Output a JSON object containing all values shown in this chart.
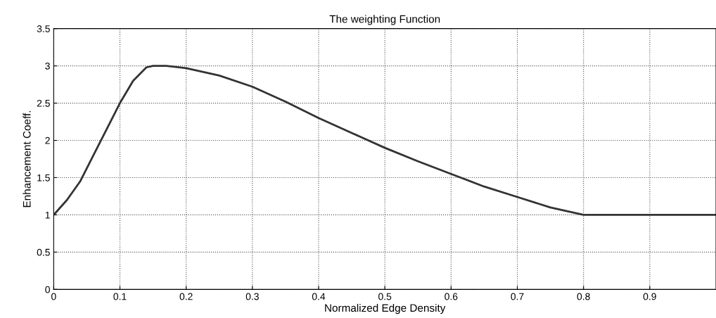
{
  "chart_data": {
    "type": "line",
    "title": "The weighting Function",
    "xlabel": "Normalized Edge Density",
    "ylabel": "Enhancement Coeff.",
    "x": [
      0,
      0.02,
      0.04,
      0.06,
      0.08,
      0.1,
      0.12,
      0.14,
      0.15,
      0.17,
      0.2,
      0.25,
      0.3,
      0.35,
      0.4,
      0.45,
      0.5,
      0.55,
      0.6,
      0.65,
      0.7,
      0.75,
      0.8,
      0.9,
      1.0
    ],
    "series": [
      {
        "color": "#333333",
        "values": [
          1,
          1.2,
          1.45,
          1.8,
          2.15,
          2.5,
          2.8,
          2.98,
          3.0,
          3.0,
          2.97,
          2.87,
          2.72,
          2.52,
          2.3,
          2.1,
          1.9,
          1.72,
          1.55,
          1.38,
          1.24,
          1.1,
          1.0,
          1.0,
          1.0
        ]
      }
    ],
    "xlim": [
      0,
      1
    ],
    "ylim": [
      0,
      3.5
    ],
    "xticks": [
      0,
      0.1,
      0.2,
      0.3,
      0.4,
      0.5,
      0.6,
      0.7,
      0.8,
      0.9
    ],
    "yticks": [
      0,
      0.5,
      1,
      1.5,
      2,
      2.5,
      3,
      3.5
    ],
    "grid": true,
    "line_style": "solid",
    "marker": "none"
  }
}
